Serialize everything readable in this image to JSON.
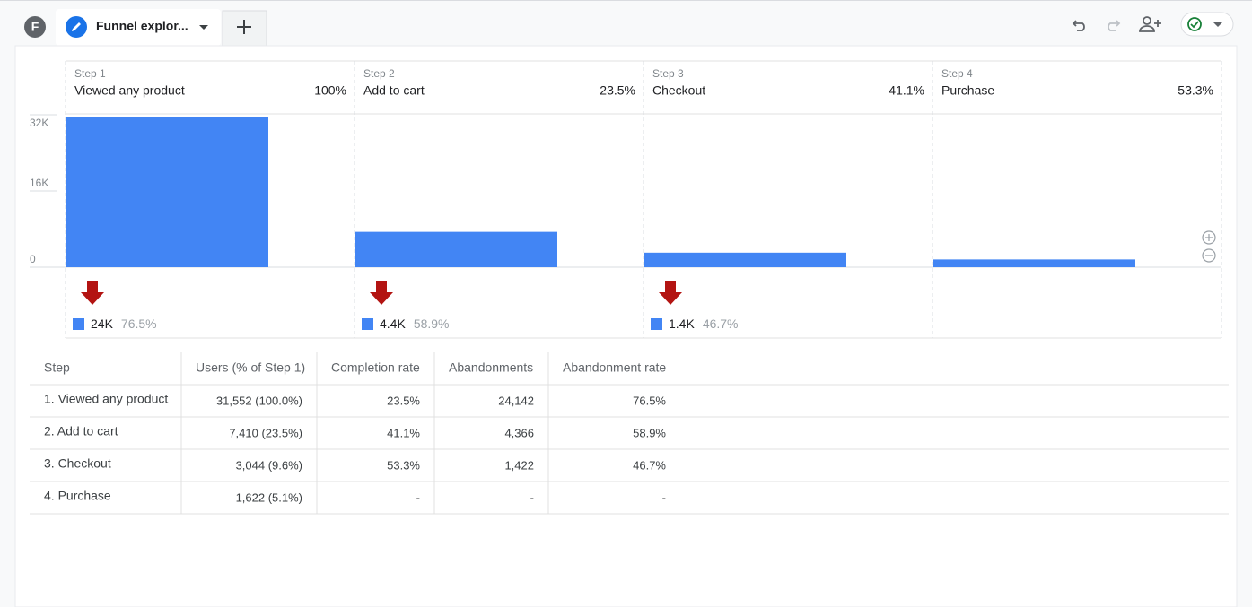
{
  "tab": {
    "avatar": "F",
    "title": "Funnel explor..."
  },
  "chart_data": {
    "type": "bar",
    "steps": [
      "Step 1",
      "Step 2",
      "Step 3",
      "Step 4"
    ],
    "categories": [
      "Viewed any product",
      "Add to cart",
      "Checkout",
      "Purchase"
    ],
    "rates": [
      "100%",
      "23.5%",
      "41.1%",
      "53.3%"
    ],
    "values": [
      31552,
      7410,
      3044,
      1622
    ],
    "color": "#4285f4",
    "ylim": [
      0,
      32000
    ],
    "yticks": [
      0,
      {
        "value": 16000,
        "label": "16K"
      },
      {
        "value": 32000,
        "label": "32K"
      }
    ],
    "abandonments": [
      {
        "count": "24K",
        "rate": "76.5%"
      },
      {
        "count": "4.4K",
        "rate": "58.9%"
      },
      {
        "count": "1.4K",
        "rate": "46.7%"
      }
    ],
    "abandon_color": "#b31412"
  },
  "table": {
    "columns": [
      "Step",
      "Users (% of Step 1)",
      "Completion rate",
      "Abandonments",
      "Abandonment rate"
    ],
    "rows": [
      [
        "1. Viewed any product",
        "31,552 (100.0%)",
        "23.5%",
        "24,142",
        "76.5%"
      ],
      [
        "2. Add to cart",
        "7,410 (23.5%)",
        "41.1%",
        "4,366",
        "58.9%"
      ],
      [
        "3. Checkout",
        "3,044 (9.6%)",
        "53.3%",
        "1,422",
        "46.7%"
      ],
      [
        "4. Purchase",
        "1,622 (5.1%)",
        "-",
        "-",
        "-"
      ]
    ]
  }
}
